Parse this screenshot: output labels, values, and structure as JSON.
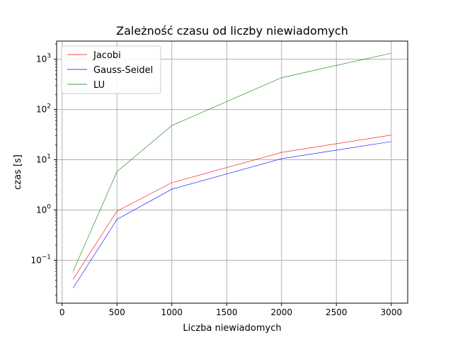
{
  "chart_data": {
    "type": "line",
    "title": "Zależność czasu od liczby niewiadomych",
    "xlabel": "Liczba niewiadomych",
    "ylabel": "czas [s]",
    "x": [
      100,
      500,
      1000,
      2000,
      3000
    ],
    "xlim": [
      -50,
      3150
    ],
    "ylim": [
      0.014,
      2300
    ],
    "yscale": "log",
    "grid": true,
    "legend_position": "top-left",
    "xticks": [
      0,
      500,
      1000,
      1500,
      2000,
      2500,
      3000
    ],
    "xtick_labels": [
      "0",
      "500",
      "1000",
      "1500",
      "2000",
      "2500",
      "3000"
    ],
    "yticks": [
      0.1,
      1,
      10,
      100,
      1000
    ],
    "ytick_labels": [
      {
        "base": "10",
        "exp": "−1"
      },
      {
        "base": "10",
        "exp": "0"
      },
      {
        "base": "10",
        "exp": "1"
      },
      {
        "base": "10",
        "exp": "2"
      },
      {
        "base": "10",
        "exp": "3"
      }
    ],
    "series": [
      {
        "name": "Jacobi",
        "color": "#ff0000",
        "values": [
          0.042,
          0.95,
          3.5,
          14,
          31
        ]
      },
      {
        "name": "Gauss-Seidel",
        "color": "#0000ff",
        "values": [
          0.028,
          0.65,
          2.6,
          10.5,
          23
        ]
      },
      {
        "name": "LU",
        "color": "#008000",
        "values": [
          0.06,
          5.8,
          48,
          430,
          1320
        ]
      }
    ]
  }
}
